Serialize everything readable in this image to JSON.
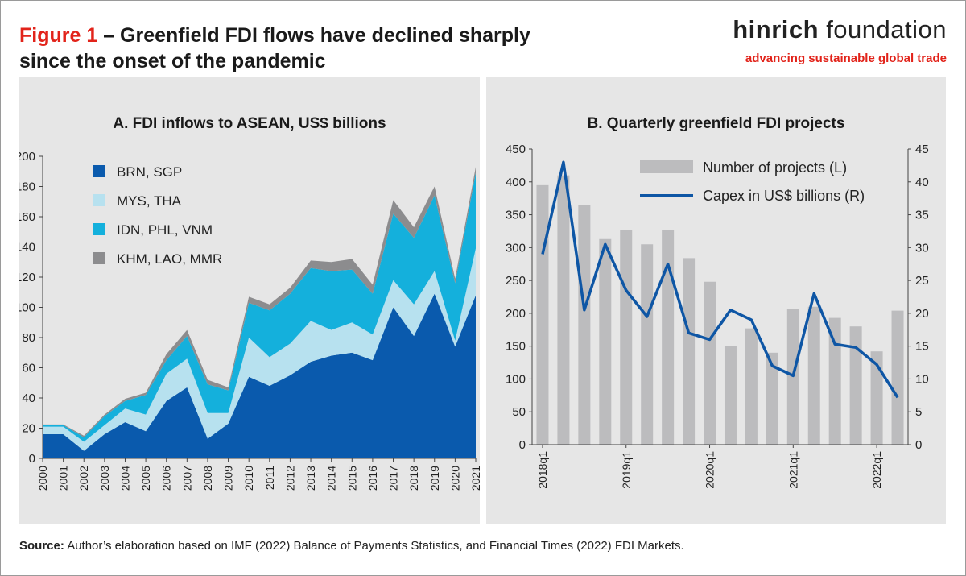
{
  "figure": {
    "number": "Figure 1",
    "title_rest": " – Greenfield FDI flows have declined sharply",
    "title_line2": "since the onset of the pandemic"
  },
  "brand": {
    "name_bold": "hinrich",
    "name_rest": " foundation",
    "tagline": "advancing sustainable global trade"
  },
  "source": {
    "label": "Source:",
    "text": " Author’s elaboration based on IMF (2022) Balance of Payments Statistics, and Financial Times (2022) FDI Markets."
  },
  "colors": {
    "brn_sgp": "#0a5aad",
    "mys_tha": "#b7e1ef",
    "idn_phl_vnm": "#14b0dc",
    "khm_lao_mmr": "#8c8c8e",
    "bars": "#bcbcbe",
    "capex_line": "#0e56a5",
    "accent_red": "#e2231a"
  },
  "chart_data": [
    {
      "type": "area",
      "stacked": true,
      "title": "A. FDI inflows to ASEAN, US$ billions",
      "xlabel": "",
      "ylabel": "",
      "ylim": [
        0,
        200
      ],
      "yticks": [
        0,
        20,
        40,
        60,
        80,
        100,
        120,
        140,
        160,
        180,
        200
      ],
      "legend_position": "top-left",
      "x": [
        "2000",
        "2001",
        "2002",
        "2003",
        "2004",
        "2005",
        "2006",
        "2007",
        "2008",
        "2009",
        "2010",
        "2011",
        "2012",
        "2013",
        "2014",
        "2015",
        "2016",
        "2017",
        "2018",
        "2019",
        "2020",
        "2021"
      ],
      "series": [
        {
          "name": "BRN, SGP",
          "color": "#0a5aad",
          "values": [
            16,
            16,
            5,
            16,
            24,
            18,
            38,
            47,
            13,
            23,
            54,
            48,
            55,
            64,
            68,
            70,
            65,
            100,
            81,
            109,
            74,
            108
          ]
        },
        {
          "name": "MYS, THA",
          "color": "#b7e1ef",
          "values": [
            5,
            5,
            6,
            6,
            9,
            11,
            18,
            19,
            17,
            7,
            26,
            19,
            21,
            27,
            17,
            20,
            17,
            18,
            21,
            15,
            4,
            31
          ]
        },
        {
          "name": "IDN, PHL, VNM",
          "color": "#14b0dc",
          "values": [
            1,
            1,
            3,
            6,
            5,
            13,
            9,
            15,
            19,
            15,
            23,
            31,
            33,
            35,
            39,
            35,
            27,
            44,
            44,
            50,
            38,
            50
          ]
        },
        {
          "name": "KHM, LAO, MMR",
          "color": "#8c8c8e",
          "values": [
            0.5,
            0.5,
            1,
            1,
            1.5,
            1.5,
            4,
            4,
            3,
            2,
            4,
            4,
            4,
            5,
            6,
            7,
            6,
            9,
            7,
            6,
            3,
            4
          ]
        }
      ]
    },
    {
      "type": "bar",
      "combo": "bar+line",
      "title": "B. Quarterly greenfield FDI projects",
      "xlabel": "",
      "legend_position": "top-right",
      "categories": [
        "2018q1",
        "2018q2",
        "2018q3",
        "2018q4",
        "2019q1",
        "2019q2",
        "2019q3",
        "2019q4",
        "2020q1",
        "2020q2",
        "2020q3",
        "2020q4",
        "2021q1",
        "2021q2",
        "2021q3",
        "2021q4",
        "2022q1",
        "2022q2"
      ],
      "x_tick_labels": [
        "2018q1",
        "",
        "",
        "",
        "2019q1",
        "",
        "",
        "",
        "2020q1",
        "",
        "",
        "",
        "2021q1",
        "",
        "",
        "",
        "2022q1",
        ""
      ],
      "left_axis": {
        "ylim": [
          0,
          450
        ],
        "ticks": [
          0,
          50,
          100,
          150,
          200,
          250,
          300,
          350,
          400,
          450
        ]
      },
      "right_axis": {
        "ylim": [
          0,
          45
        ],
        "ticks": [
          0,
          5,
          10,
          15,
          20,
          25,
          30,
          35,
          40,
          45
        ]
      },
      "series": [
        {
          "name": "Number of projects (L)",
          "kind": "bar",
          "axis": "left",
          "color": "#bcbcbe",
          "values": [
            395,
            410,
            365,
            313,
            327,
            305,
            327,
            284,
            248,
            150,
            177,
            140,
            207,
            210,
            193,
            180,
            142,
            204
          ]
        },
        {
          "name": "Capex in US$ billions (R)",
          "kind": "line",
          "axis": "right",
          "color": "#0e56a5",
          "values": [
            29,
            43,
            20.5,
            30.5,
            23.5,
            19.5,
            27.5,
            17,
            16,
            20.5,
            19,
            12,
            10.5,
            23,
            15.3,
            14.8,
            12.2,
            7.2
          ]
        }
      ]
    }
  ]
}
